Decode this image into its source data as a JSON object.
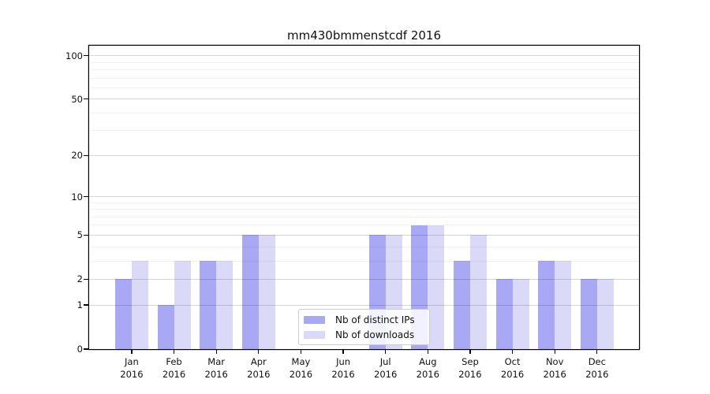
{
  "title": "mm430bmmenstcdf 2016",
  "chart_data": {
    "type": "bar",
    "title": "mm430bmmenstcdf 2016",
    "categories": [
      "Jan 2016",
      "Feb 2016",
      "Mar 2016",
      "Apr 2016",
      "May 2016",
      "Jun 2016",
      "Jul 2016",
      "Aug 2016",
      "Sep 2016",
      "Oct 2016",
      "Nov 2016",
      "Dec 2016"
    ],
    "x_months": [
      "Jan",
      "Feb",
      "Mar",
      "Apr",
      "May",
      "Jun",
      "Jul",
      "Aug",
      "Sep",
      "Oct",
      "Nov",
      "Dec"
    ],
    "x_year": "2016",
    "series": [
      {
        "name": "Nb of distinct IPs",
        "color": "#a8a8f5",
        "values": [
          2,
          1,
          3,
          5,
          0,
          0,
          5,
          6,
          3,
          2,
          3,
          2
        ]
      },
      {
        "name": "Nb of downloads",
        "color": "#dadaf8",
        "values": [
          3,
          3,
          3,
          5,
          0,
          0,
          5,
          6,
          5,
          2,
          3,
          2
        ]
      }
    ],
    "xlabel": "",
    "ylabel": "",
    "y_scale": "log10(1+x)",
    "y_tick_values": [
      0,
      1,
      2,
      5,
      10,
      20,
      50,
      100
    ],
    "y_tick_labels": [
      "0",
      "1",
      "2",
      "5",
      "10",
      "20",
      "50",
      "100"
    ],
    "y_minor_gridlines": [
      3,
      4,
      6,
      7,
      8,
      9,
      30,
      40,
      60,
      70,
      80,
      90
    ],
    "ylim": [
      0,
      116
    ],
    "grid": "horizontal",
    "legend_position": "lower center"
  },
  "colors": {
    "bar_distinct_ips": "#a8a8f5",
    "bar_downloads": "#dadaf8",
    "grid_major": "#d6d6d6",
    "grid_minor": "#efefef",
    "spine": "#000000",
    "legend_border": "#cccccc",
    "text": "#111111"
  }
}
